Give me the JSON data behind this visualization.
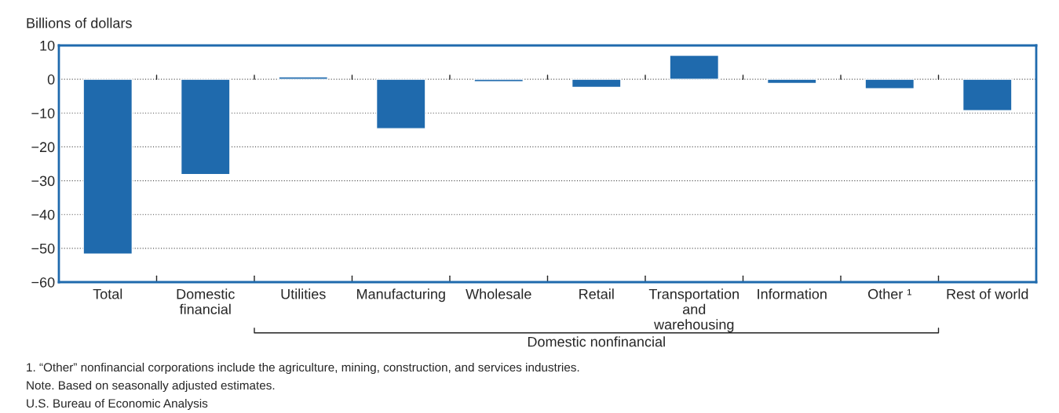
{
  "chart_data": {
    "type": "bar",
    "ylabel": "Billions of dollars",
    "categories": [
      "Total",
      "Domestic\nfinancial",
      "Utilities",
      "Manufacturing",
      "Wholesale",
      "Retail",
      "Transportation\nand\nwarehousing",
      "Information",
      "Other ¹",
      "Rest of world"
    ],
    "values": [
      -51.7,
      -28.2,
      0.7,
      -14.6,
      -0.7,
      -2.4,
      7.1,
      -1.2,
      -2.8,
      -9.3
    ],
    "color": "#1f6aad",
    "ylim": [
      -60,
      10
    ],
    "yticks": [
      {
        "value": -60,
        "label": "−60"
      },
      {
        "value": -50,
        "label": "−50"
      },
      {
        "value": -40,
        "label": "−40"
      },
      {
        "value": -30,
        "label": "−30"
      },
      {
        "value": -20,
        "label": "−20"
      },
      {
        "value": -10,
        "label": "−10"
      },
      0,
      10
    ],
    "grid": "y",
    "annotations": [
      "Domestic nonfinancial",
      "1. “Other” nonfinancial corporations include the agriculture, mining, construction, and services industries.",
      "Note. Based on seasonally adjusted estimates.",
      "U.S. Bureau of Economic Analysis"
    ]
  }
}
